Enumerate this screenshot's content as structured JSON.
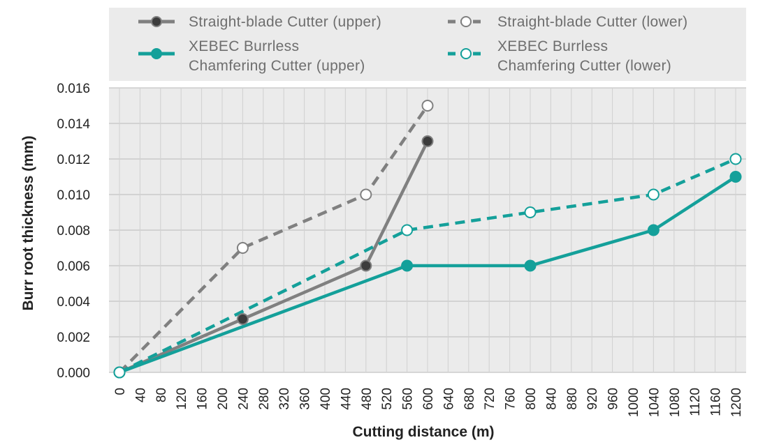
{
  "chart_data": {
    "type": "line",
    "xlabel": "Cutting distance (m)",
    "ylabel": "Burr root thickness (mm)",
    "xlim": [
      0,
      1200
    ],
    "ylim": [
      0,
      0.016
    ],
    "x_ticks": [
      "0",
      "40",
      "80",
      "120",
      "160",
      "200",
      "240",
      "280",
      "320",
      "360",
      "400",
      "440",
      "480",
      "520",
      "560",
      "600",
      "640",
      "680",
      "720",
      "760",
      "800",
      "840",
      "880",
      "920",
      "960",
      "1000",
      "1040",
      "1080",
      "1120",
      "1160",
      "1200"
    ],
    "y_ticks": [
      "0.000",
      "0.002",
      "0.004",
      "0.006",
      "0.008",
      "0.010",
      "0.012",
      "0.014",
      "0.016"
    ],
    "grid": true,
    "legend_position": "top",
    "series": [
      {
        "name": "Straight-blade Cutter (upper)",
        "color": "#808080",
        "marker_fill": "#3c3c3c",
        "dashed": false,
        "points": [
          [
            0,
            0.0
          ],
          [
            240,
            0.003
          ],
          [
            480,
            0.006
          ],
          [
            600,
            0.013
          ]
        ]
      },
      {
        "name": "Straight-blade Cutter (lower)",
        "color": "#808080",
        "marker_fill": "#ffffff",
        "dashed": true,
        "points": [
          [
            0,
            0.0
          ],
          [
            240,
            0.007
          ],
          [
            480,
            0.01
          ],
          [
            600,
            0.015
          ]
        ]
      },
      {
        "name": "XEBEC Burrless Chamfering Cutter (upper)",
        "legend_lines": [
          "XEBEC Burrless",
          "Chamfering Cutter (upper)"
        ],
        "color": "#14a09a",
        "marker_fill": "#14a09a",
        "dashed": false,
        "points": [
          [
            0,
            0.0
          ],
          [
            560,
            0.006
          ],
          [
            800,
            0.006
          ],
          [
            1040,
            0.008
          ],
          [
            1200,
            0.011
          ]
        ]
      },
      {
        "name": "XEBEC Burrless Chamfering Cutter (lower)",
        "legend_lines": [
          "XEBEC Burrless",
          "Chamfering Cutter (lower)"
        ],
        "color": "#14a09a",
        "marker_fill": "#ffffff",
        "dashed": true,
        "points": [
          [
            0,
            0.0
          ],
          [
            560,
            0.008
          ],
          [
            800,
            0.009
          ],
          [
            1040,
            0.01
          ],
          [
            1200,
            0.012
          ]
        ]
      }
    ]
  }
}
